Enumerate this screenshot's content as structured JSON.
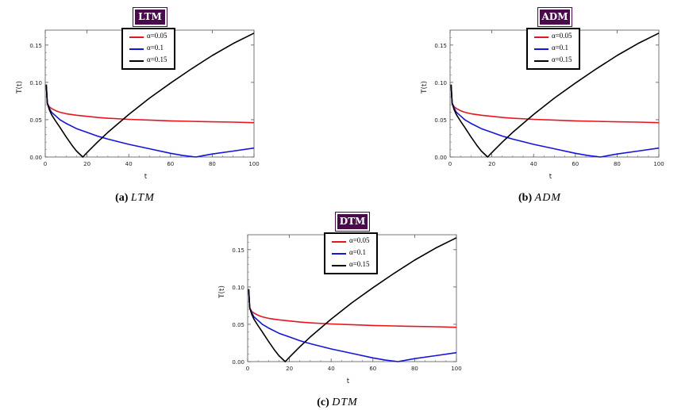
{
  "chart_data": [
    {
      "type": "line",
      "badge": "LTM",
      "caption_label": "(a)",
      "caption_method": "LTM",
      "xlabel": "t",
      "ylabel": "T(t)",
      "xlim": [
        0,
        100
      ],
      "ylim": [
        0,
        0.17
      ],
      "xticks": [
        "0",
        "20",
        "40",
        "60",
        "80",
        "100"
      ],
      "yticks": [
        "0.00",
        "0.05",
        "0.10",
        "0.15"
      ],
      "series": [
        {
          "name": "α=0.05",
          "color": "#e8141e",
          "x": [
            0.5,
            1,
            2,
            3,
            5,
            7,
            10,
            15,
            20,
            25,
            30,
            40,
            50,
            60,
            70,
            80,
            90,
            100
          ],
          "y": [
            0.097,
            0.072,
            0.067,
            0.065,
            0.062,
            0.06,
            0.058,
            0.056,
            0.0545,
            0.053,
            0.052,
            0.0505,
            0.0495,
            0.0485,
            0.0478,
            0.0472,
            0.0467,
            0.046
          ]
        },
        {
          "name": "α=0.1",
          "color": "#1414e0",
          "x": [
            0.5,
            1,
            2,
            3,
            5,
            7,
            10,
            15,
            20,
            25,
            30,
            40,
            50,
            60,
            66,
            72,
            80,
            90,
            100
          ],
          "y": [
            0.097,
            0.072,
            0.065,
            0.06,
            0.055,
            0.05,
            0.045,
            0.038,
            0.033,
            0.028,
            0.024,
            0.017,
            0.011,
            0.005,
            0.002,
            0.0,
            0.004,
            0.008,
            0.012
          ]
        },
        {
          "name": "α=0.15",
          "color": "#000000",
          "x": [
            0.5,
            1,
            2,
            3,
            5,
            7,
            10,
            13,
            15,
            18,
            20,
            25,
            30,
            40,
            50,
            60,
            70,
            80,
            90,
            100
          ],
          "y": [
            0.097,
            0.072,
            0.063,
            0.057,
            0.048,
            0.04,
            0.027,
            0.015,
            0.008,
            0.0,
            0.006,
            0.02,
            0.033,
            0.057,
            0.079,
            0.099,
            0.118,
            0.136,
            0.152,
            0.166
          ]
        }
      ]
    },
    {
      "type": "line",
      "badge": "ADM",
      "caption_label": "(b)",
      "caption_method": "ADM",
      "xlabel": "t",
      "ylabel": "T(t)",
      "xlim": [
        0,
        100
      ],
      "ylim": [
        0,
        0.17
      ],
      "xticks": [
        "0",
        "20",
        "40",
        "60",
        "80",
        "100"
      ],
      "yticks": [
        "0.00",
        "0.05",
        "0.10",
        "0.15"
      ],
      "series": [
        {
          "name": "α=0.05",
          "color": "#e8141e",
          "x": [
            0.5,
            1,
            2,
            3,
            5,
            7,
            10,
            15,
            20,
            25,
            30,
            40,
            50,
            60,
            70,
            80,
            90,
            100
          ],
          "y": [
            0.097,
            0.072,
            0.067,
            0.065,
            0.062,
            0.06,
            0.058,
            0.056,
            0.0545,
            0.053,
            0.052,
            0.0505,
            0.0495,
            0.0485,
            0.0478,
            0.0472,
            0.0467,
            0.046
          ]
        },
        {
          "name": "α=0.1",
          "color": "#1414e0",
          "x": [
            0.5,
            1,
            2,
            3,
            5,
            7,
            10,
            15,
            20,
            25,
            30,
            40,
            50,
            60,
            66,
            72,
            80,
            90,
            100
          ],
          "y": [
            0.097,
            0.072,
            0.065,
            0.06,
            0.055,
            0.05,
            0.045,
            0.038,
            0.033,
            0.028,
            0.024,
            0.017,
            0.011,
            0.005,
            0.002,
            0.0,
            0.004,
            0.008,
            0.012
          ]
        },
        {
          "name": "α=0.15",
          "color": "#000000",
          "x": [
            0.5,
            1,
            2,
            3,
            5,
            7,
            10,
            13,
            15,
            18,
            20,
            25,
            30,
            40,
            50,
            60,
            70,
            80,
            90,
            100
          ],
          "y": [
            0.097,
            0.072,
            0.063,
            0.057,
            0.048,
            0.04,
            0.027,
            0.015,
            0.008,
            0.0,
            0.006,
            0.02,
            0.033,
            0.057,
            0.079,
            0.099,
            0.118,
            0.136,
            0.152,
            0.166
          ]
        }
      ]
    },
    {
      "type": "line",
      "badge": "DTM",
      "caption_label": "(c)",
      "caption_method": "DTM",
      "xlabel": "t",
      "ylabel": "T(t)",
      "xlim": [
        0,
        100
      ],
      "ylim": [
        0,
        0.17
      ],
      "xticks": [
        "0",
        "20",
        "40",
        "60",
        "80",
        "100"
      ],
      "yticks": [
        "0.00",
        "0.05",
        "0.10",
        "0.15"
      ],
      "series": [
        {
          "name": "α=0.05",
          "color": "#e8141e",
          "x": [
            0.5,
            1,
            2,
            3,
            5,
            7,
            10,
            15,
            20,
            25,
            30,
            40,
            50,
            60,
            70,
            80,
            90,
            100
          ],
          "y": [
            0.097,
            0.072,
            0.067,
            0.065,
            0.062,
            0.06,
            0.058,
            0.056,
            0.0545,
            0.053,
            0.052,
            0.0505,
            0.0495,
            0.0485,
            0.0478,
            0.0472,
            0.0467,
            0.046
          ]
        },
        {
          "name": "α=0.1",
          "color": "#1414e0",
          "x": [
            0.5,
            1,
            2,
            3,
            5,
            7,
            10,
            15,
            20,
            25,
            30,
            40,
            50,
            60,
            66,
            72,
            80,
            90,
            100
          ],
          "y": [
            0.097,
            0.072,
            0.065,
            0.06,
            0.055,
            0.05,
            0.045,
            0.038,
            0.033,
            0.028,
            0.024,
            0.017,
            0.011,
            0.005,
            0.002,
            0.0,
            0.004,
            0.008,
            0.012
          ]
        },
        {
          "name": "α=0.15",
          "color": "#000000",
          "x": [
            0.5,
            1,
            2,
            3,
            5,
            7,
            10,
            13,
            15,
            18,
            20,
            25,
            30,
            40,
            50,
            60,
            70,
            80,
            90,
            100
          ],
          "y": [
            0.097,
            0.072,
            0.063,
            0.057,
            0.048,
            0.04,
            0.027,
            0.015,
            0.008,
            0.0,
            0.006,
            0.02,
            0.033,
            0.057,
            0.079,
            0.099,
            0.118,
            0.136,
            0.152,
            0.166
          ]
        }
      ]
    }
  ]
}
